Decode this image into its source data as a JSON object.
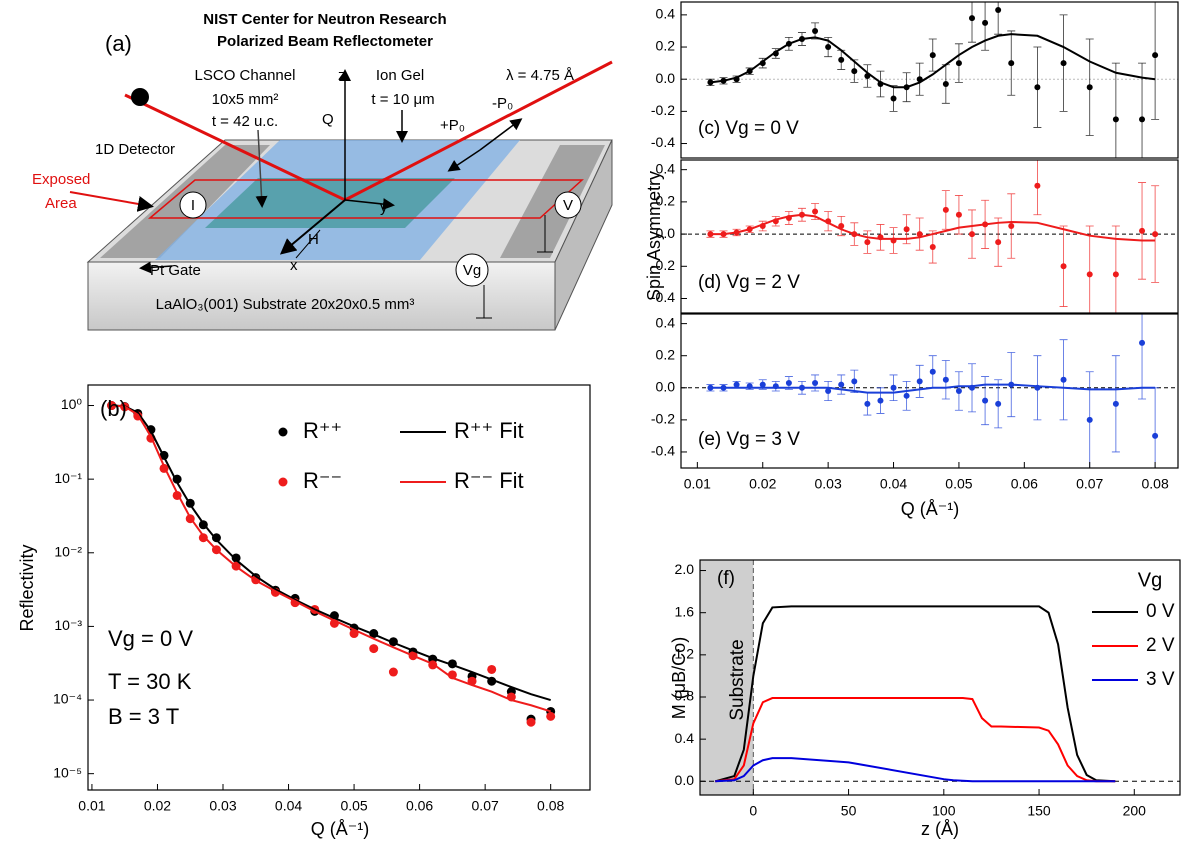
{
  "diagram": {
    "panel_label": "(a)",
    "title_lines": [
      "NIST Center for Neutron Research",
      "Polarized Beam Reflectometer"
    ],
    "channel": [
      "LSCO Channel",
      "10x5 mm²",
      "t = 42 u.c."
    ],
    "gel": [
      "Ion Gel",
      "t = 10 μm"
    ],
    "wavelength": "λ = 4.75 Å",
    "detector": "1D Detector",
    "exposed": [
      "Exposed",
      "Area"
    ],
    "polarization": [
      "+P₀",
      "-P₀"
    ],
    "axes": {
      "z": "z",
      "q": "Q",
      "y": "y",
      "h": "H",
      "x": "x"
    },
    "meters": {
      "current": "I",
      "voltage": "V",
      "gate": "Vg"
    },
    "gate": "Pt Gate",
    "substrate": "LaAlO₃(001) Substrate 20x20x0.5 mm³"
  },
  "chart_data": [
    {
      "type": "scatter",
      "log_y": true,
      "xlabel": "Q (Å⁻¹)",
      "ylabel": "Reflectivity",
      "annotations": [
        "(b)",
        "Vg = 0 V",
        "T = 30 K",
        "B = 3 T"
      ],
      "x": [
        0.013,
        0.015,
        0.017,
        0.019,
        0.021,
        0.023,
        0.025,
        0.027,
        0.029,
        0.032,
        0.035,
        0.038,
        0.041,
        0.044,
        0.047,
        0.05,
        0.053,
        0.056,
        0.059,
        0.062,
        0.065,
        0.068,
        0.071,
        0.074,
        0.077,
        0.08
      ],
      "xlim": [
        0.0094,
        0.086
      ],
      "xticks": [
        0.01,
        0.02,
        0.03,
        0.04,
        0.05,
        0.06,
        0.07,
        0.08
      ],
      "ylim": [
        6e-06,
        1.9
      ],
      "yticks": [
        {
          "value": 1,
          "label": "10⁰"
        },
        {
          "value": 0.1,
          "label": "10⁻¹"
        },
        {
          "value": 0.01,
          "label": "10⁻²"
        },
        {
          "value": 0.001,
          "label": "10⁻³"
        },
        {
          "value": 0.0001,
          "label": "10⁻⁴"
        },
        {
          "value": 1e-05,
          "label": "10⁻⁵"
        }
      ],
      "series": [
        {
          "name": "R⁺⁺",
          "style": "points",
          "color": "#000000",
          "values": [
            1,
            0.97,
            0.78,
            0.47,
            0.21,
            0.1,
            0.047,
            0.024,
            0.016,
            0.0085,
            0.0046,
            0.0031,
            0.0024,
            0.0016,
            0.0014,
            0.00095,
            0.0008,
            0.00062,
            0.00045,
            0.00036,
            0.00031,
            0.00021,
            0.00018,
            0.00013,
            5.5e-05,
            7e-05
          ]
        },
        {
          "name": "R⁻⁻",
          "style": "points",
          "color": "#ee1c1c",
          "values": [
            1,
            0.96,
            0.72,
            0.36,
            0.14,
            0.06,
            0.029,
            0.016,
            0.011,
            0.0066,
            0.0043,
            0.0029,
            0.0021,
            0.0017,
            0.0011,
            0.0008,
            0.0005,
            0.00024,
            0.0004,
            0.0003,
            0.00022,
            0.00018,
            0.00026,
            0.00011,
            5e-05,
            6e-05
          ]
        },
        {
          "name": "R⁺⁺ Fit",
          "style": "line",
          "color": "#000000",
          "values": [
            1,
            0.98,
            0.8,
            0.45,
            0.2,
            0.09,
            0.045,
            0.025,
            0.015,
            0.008,
            0.0048,
            0.0032,
            0.0023,
            0.0017,
            0.0013,
            0.001,
            0.00078,
            0.0006,
            0.00047,
            0.00037,
            0.0003,
            0.00024,
            0.00019,
            0.00015,
            0.00012,
            0.0001
          ]
        },
        {
          "name": "R⁻⁻ Fit",
          "style": "line",
          "color": "#ee1c1c",
          "values": [
            1,
            0.97,
            0.75,
            0.38,
            0.15,
            0.065,
            0.03,
            0.017,
            0.011,
            0.0065,
            0.0042,
            0.003,
            0.0022,
            0.0016,
            0.0012,
            0.0009,
            0.00068,
            0.00052,
            0.0004,
            0.00031,
            0.0002,
            0.00016,
            0.00013,
            0.0001,
            8.5e-05,
            7e-05
          ]
        }
      ]
    },
    {
      "type": "scatter",
      "annotations": [
        "(c) Vg = 0 V"
      ],
      "x": [
        0.012,
        0.014,
        0.016,
        0.018,
        0.02,
        0.022,
        0.024,
        0.026,
        0.028,
        0.03,
        0.032,
        0.034,
        0.036,
        0.038,
        0.04,
        0.042,
        0.044,
        0.046,
        0.048,
        0.05,
        0.052,
        0.054,
        0.056,
        0.058,
        0.062,
        0.066,
        0.07,
        0.074,
        0.078,
        0.08
      ],
      "xlim": [
        0.0075,
        0.0835
      ],
      "ylim": [
        -0.49,
        0.48
      ],
      "yticks": [
        -0.4,
        -0.2,
        {
          "value": 0,
          "label": "0.0"
        },
        0.2,
        0.4
      ],
      "series": [
        {
          "style": "points",
          "color": "#000000",
          "values": [
            -0.02,
            -0.01,
            0.0,
            0.05,
            0.1,
            0.16,
            0.22,
            0.25,
            0.3,
            0.2,
            0.12,
            0.05,
            0.02,
            -0.03,
            -0.12,
            -0.05,
            0.0,
            0.15,
            -0.03,
            0.1,
            0.38,
            0.35,
            0.43,
            0.1,
            -0.05,
            0.1,
            -0.05,
            -0.25,
            -0.25,
            0.15
          ],
          "errors": [
            0.02,
            0.02,
            0.02,
            0.02,
            0.03,
            0.03,
            0.04,
            0.04,
            0.05,
            0.06,
            0.06,
            0.07,
            0.07,
            0.08,
            0.08,
            0.09,
            0.1,
            0.1,
            0.12,
            0.12,
            0.15,
            0.17,
            0.15,
            0.2,
            0.25,
            0.3,
            0.3,
            0.35,
            0.35,
            0.4
          ]
        },
        {
          "style": "line",
          "color": "#000000",
          "values": [
            -0.02,
            -0.01,
            0.01,
            0.05,
            0.11,
            0.17,
            0.22,
            0.25,
            0.26,
            0.24,
            0.18,
            0.11,
            0.04,
            -0.02,
            -0.05,
            -0.05,
            -0.02,
            0.03,
            0.09,
            0.15,
            0.2,
            0.24,
            0.27,
            0.28,
            0.27,
            0.2,
            0.11,
            0.04,
            0.01,
            0.0
          ]
        }
      ]
    },
    {
      "type": "scatter",
      "annotations": [
        "(d) Vg = 2 V"
      ],
      "ylabel": "Spin Asymmetry",
      "x": [
        0.012,
        0.014,
        0.016,
        0.018,
        0.02,
        0.022,
        0.024,
        0.026,
        0.028,
        0.03,
        0.032,
        0.034,
        0.036,
        0.038,
        0.04,
        0.042,
        0.044,
        0.046,
        0.048,
        0.05,
        0.052,
        0.054,
        0.056,
        0.058,
        0.062,
        0.066,
        0.07,
        0.074,
        0.078,
        0.08
      ],
      "xlim": [
        0.0075,
        0.0835
      ],
      "ylim": [
        -0.49,
        0.46
      ],
      "yticks": [
        -0.4,
        -0.2,
        {
          "value": 0,
          "label": "0.0"
        },
        0.2,
        0.4
      ],
      "series": [
        {
          "style": "points",
          "color": "#ee1c1c",
          "values": [
            0,
            0,
            0.01,
            0.03,
            0.05,
            0.08,
            0.1,
            0.12,
            0.14,
            0.08,
            0.05,
            0.0,
            -0.05,
            -0.02,
            -0.04,
            0.03,
            0.0,
            -0.08,
            0.15,
            0.12,
            0.0,
            0.06,
            -0.05,
            0.05,
            0.3,
            -0.2,
            -0.25,
            -0.25,
            0.02,
            0.0
          ],
          "errors": [
            0.02,
            0.02,
            0.02,
            0.02,
            0.03,
            0.03,
            0.04,
            0.04,
            0.05,
            0.06,
            0.06,
            0.07,
            0.07,
            0.08,
            0.08,
            0.09,
            0.1,
            0.1,
            0.12,
            0.12,
            0.15,
            0.15,
            0.15,
            0.2,
            0.18,
            0.25,
            0.3,
            0.3,
            0.3,
            0.3
          ]
        },
        {
          "style": "line",
          "color": "#ee1c1c",
          "values": [
            0,
            0,
            0.01,
            0.03,
            0.06,
            0.09,
            0.11,
            0.12,
            0.11,
            0.07,
            0.03,
            0.0,
            -0.02,
            -0.03,
            -0.03,
            -0.03,
            -0.02,
            0.0,
            0.02,
            0.04,
            0.05,
            0.06,
            0.07,
            0.075,
            0.07,
            0.03,
            -0.01,
            -0.03,
            -0.04,
            -0.04
          ]
        }
      ]
    },
    {
      "type": "scatter",
      "annotations": [
        "(e) Vg = 3 V"
      ],
      "xlabel": "Q (Å⁻¹)",
      "x": [
        0.012,
        0.014,
        0.016,
        0.018,
        0.02,
        0.022,
        0.024,
        0.026,
        0.028,
        0.03,
        0.032,
        0.034,
        0.036,
        0.038,
        0.04,
        0.042,
        0.044,
        0.046,
        0.048,
        0.05,
        0.052,
        0.054,
        0.056,
        0.058,
        0.062,
        0.066,
        0.07,
        0.074,
        0.078,
        0.08
      ],
      "xlim": [
        0.0075,
        0.0835
      ],
      "xticks": [
        0.01,
        0.02,
        0.03,
        0.04,
        0.05,
        0.06,
        0.07,
        0.08
      ],
      "ylim": [
        -0.5,
        0.46
      ],
      "yticks": [
        -0.4,
        -0.2,
        {
          "value": 0,
          "label": "0.0"
        },
        0.2,
        0.4
      ],
      "series": [
        {
          "style": "points",
          "color": "#1a3fd8",
          "values": [
            0,
            0,
            0.02,
            0.01,
            0.02,
            0.01,
            0.03,
            0.0,
            0.03,
            -0.02,
            0.02,
            0.04,
            -0.1,
            -0.08,
            0.0,
            -0.05,
            0.04,
            0.1,
            0.05,
            -0.02,
            0.0,
            -0.08,
            -0.1,
            0.02,
            0.0,
            0.05,
            -0.2,
            -0.1,
            0.28,
            -0.3
          ],
          "errors": [
            0.02,
            0.02,
            0.02,
            0.02,
            0.03,
            0.03,
            0.04,
            0.04,
            0.05,
            0.06,
            0.06,
            0.07,
            0.07,
            0.08,
            0.08,
            0.09,
            0.1,
            0.1,
            0.12,
            0.12,
            0.15,
            0.15,
            0.15,
            0.2,
            0.2,
            0.25,
            0.3,
            0.3,
            0.35,
            0.3
          ]
        },
        {
          "style": "line",
          "color": "#1a3fd8",
          "values": [
            0,
            0,
            0,
            0,
            0,
            0,
            0,
            0,
            0,
            0,
            -0.01,
            -0.02,
            -0.03,
            -0.03,
            -0.03,
            -0.02,
            -0.01,
            0,
            0,
            0.01,
            0.01,
            0.02,
            0.02,
            0.02,
            0.01,
            0,
            -0.01,
            -0.01,
            0,
            0
          ]
        }
      ]
    },
    {
      "type": "line",
      "xlabel": "z (Å)",
      "ylabel": "M (μB/Co)",
      "annotations": [
        "(f)",
        "Substrate"
      ],
      "legend_title": "Vg",
      "substrate_span": [
        -28,
        0
      ],
      "x": [
        -20,
        -10,
        -5,
        0,
        5,
        10,
        20,
        50,
        100,
        105,
        110,
        115,
        120,
        125,
        130,
        150,
        155,
        160,
        165,
        170,
        175,
        180,
        190
      ],
      "xlim": [
        -28,
        224
      ],
      "xticks": [
        0,
        50,
        100,
        150,
        200
      ],
      "ylim": [
        -0.13,
        2.1
      ],
      "yticks": [
        {
          "value": 0,
          "label": "0.0"
        },
        0.4,
        0.8,
        1.2,
        1.6,
        {
          "value": 2,
          "label": "2.0"
        }
      ],
      "series": [
        {
          "name": "0 V",
          "style": "line",
          "color": "#000000",
          "values": [
            0,
            0.05,
            0.3,
            1.0,
            1.5,
            1.65,
            1.66,
            1.66,
            1.66,
            1.66,
            1.66,
            1.66,
            1.66,
            1.66,
            1.66,
            1.66,
            1.6,
            1.3,
            0.7,
            0.25,
            0.06,
            0.01,
            0
          ]
        },
        {
          "name": "2 V",
          "style": "line",
          "color": "#ff0000",
          "values": [
            0,
            0.02,
            0.15,
            0.55,
            0.75,
            0.79,
            0.79,
            0.79,
            0.79,
            0.79,
            0.79,
            0.78,
            0.6,
            0.52,
            0.52,
            0.51,
            0.48,
            0.35,
            0.15,
            0.05,
            0.01,
            0,
            0
          ]
        },
        {
          "name": "3 V",
          "style": "line",
          "color": "#0000dd",
          "values": [
            0,
            0.01,
            0.05,
            0.15,
            0.2,
            0.22,
            0.22,
            0.18,
            0.02,
            0.01,
            0.005,
            0,
            0,
            0,
            0,
            0,
            0,
            0,
            0,
            0,
            0,
            0,
            0
          ]
        }
      ]
    }
  ]
}
